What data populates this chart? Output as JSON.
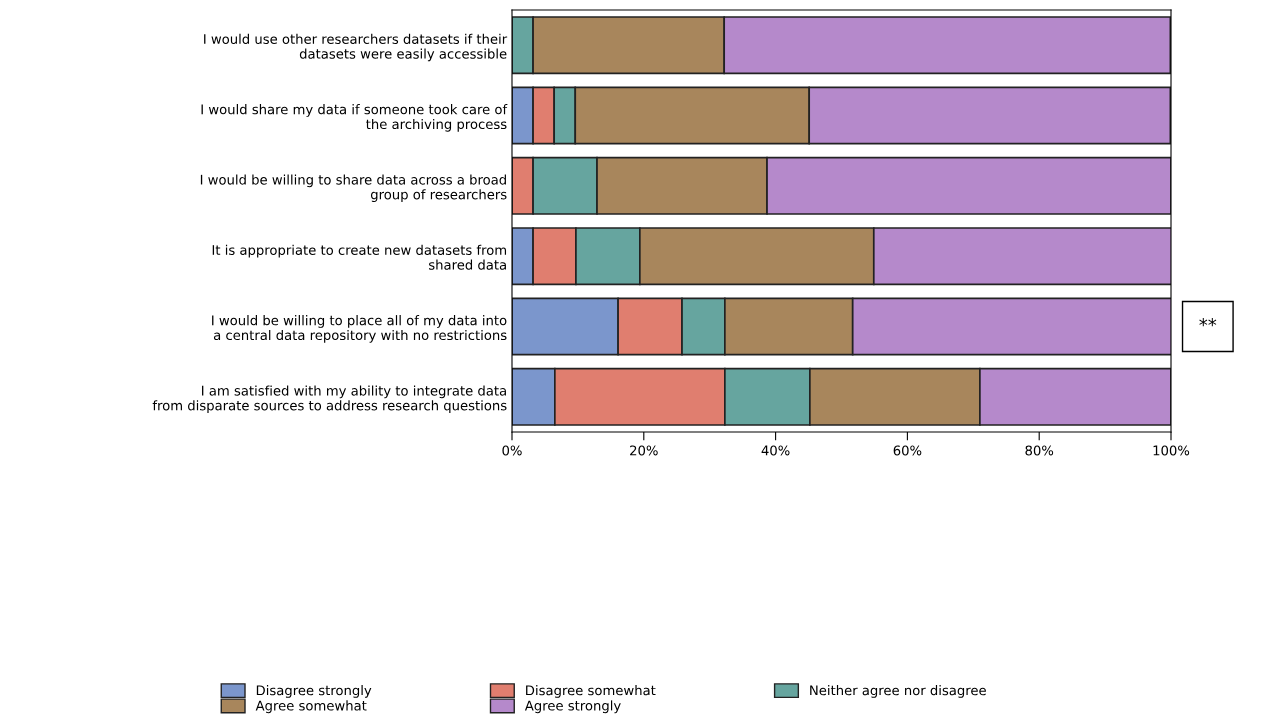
{
  "chart_data": {
    "type": "bar",
    "orientation": "horizontal",
    "stacked": true,
    "categories": [
      "I would use other researchers datasets if their\ndatasets were easily accessible",
      "I would share my data if someone took care of\nthe archiving process",
      "I would be willing to share data across a broad\ngroup of researchers",
      "It is appropriate to create new datasets from\nshared data",
      "I would be willing to place all of my data into\na central data repository with no restrictions",
      "I am satisfied with my ability to integrate data\nfrom disparate sources to address research questions"
    ],
    "series": [
      {
        "name": "Disagree strongly",
        "color": "#7b96cc",
        "values": [
          0,
          3.2,
          0,
          3.2,
          16.1,
          6.5
        ]
      },
      {
        "name": "Disagree somewhat",
        "color": "#e07e6f",
        "values": [
          0,
          3.2,
          3.2,
          6.5,
          9.7,
          25.8
        ]
      },
      {
        "name": "Neither agree nor disagree",
        "color": "#66a59f",
        "values": [
          3.2,
          3.2,
          9.7,
          9.7,
          6.5,
          12.9
        ]
      },
      {
        "name": "Agree somewhat",
        "color": "#a8865c",
        "values": [
          29.0,
          35.5,
          25.8,
          35.5,
          19.4,
          25.8
        ]
      },
      {
        "name": "Agree strongly",
        "color": "#b589cb",
        "values": [
          67.7,
          54.8,
          61.3,
          45.2,
          48.4,
          29.0
        ]
      }
    ],
    "xlim": [
      0,
      100
    ],
    "xticks": [
      {
        "value": 0,
        "label": "0%"
      },
      {
        "value": 20,
        "label": "20%"
      },
      {
        "value": 40,
        "label": "40%"
      },
      {
        "value": 60,
        "label": "60%"
      },
      {
        "value": 80,
        "label": "80%"
      },
      {
        "value": 100,
        "label": "100%"
      }
    ],
    "annotations": [
      {
        "text": "**",
        "x": 100,
        "y": "I would be willing to place all of my data into\na central data repository with no restrictions"
      }
    ],
    "legend": "bottom",
    "grid": false
  }
}
